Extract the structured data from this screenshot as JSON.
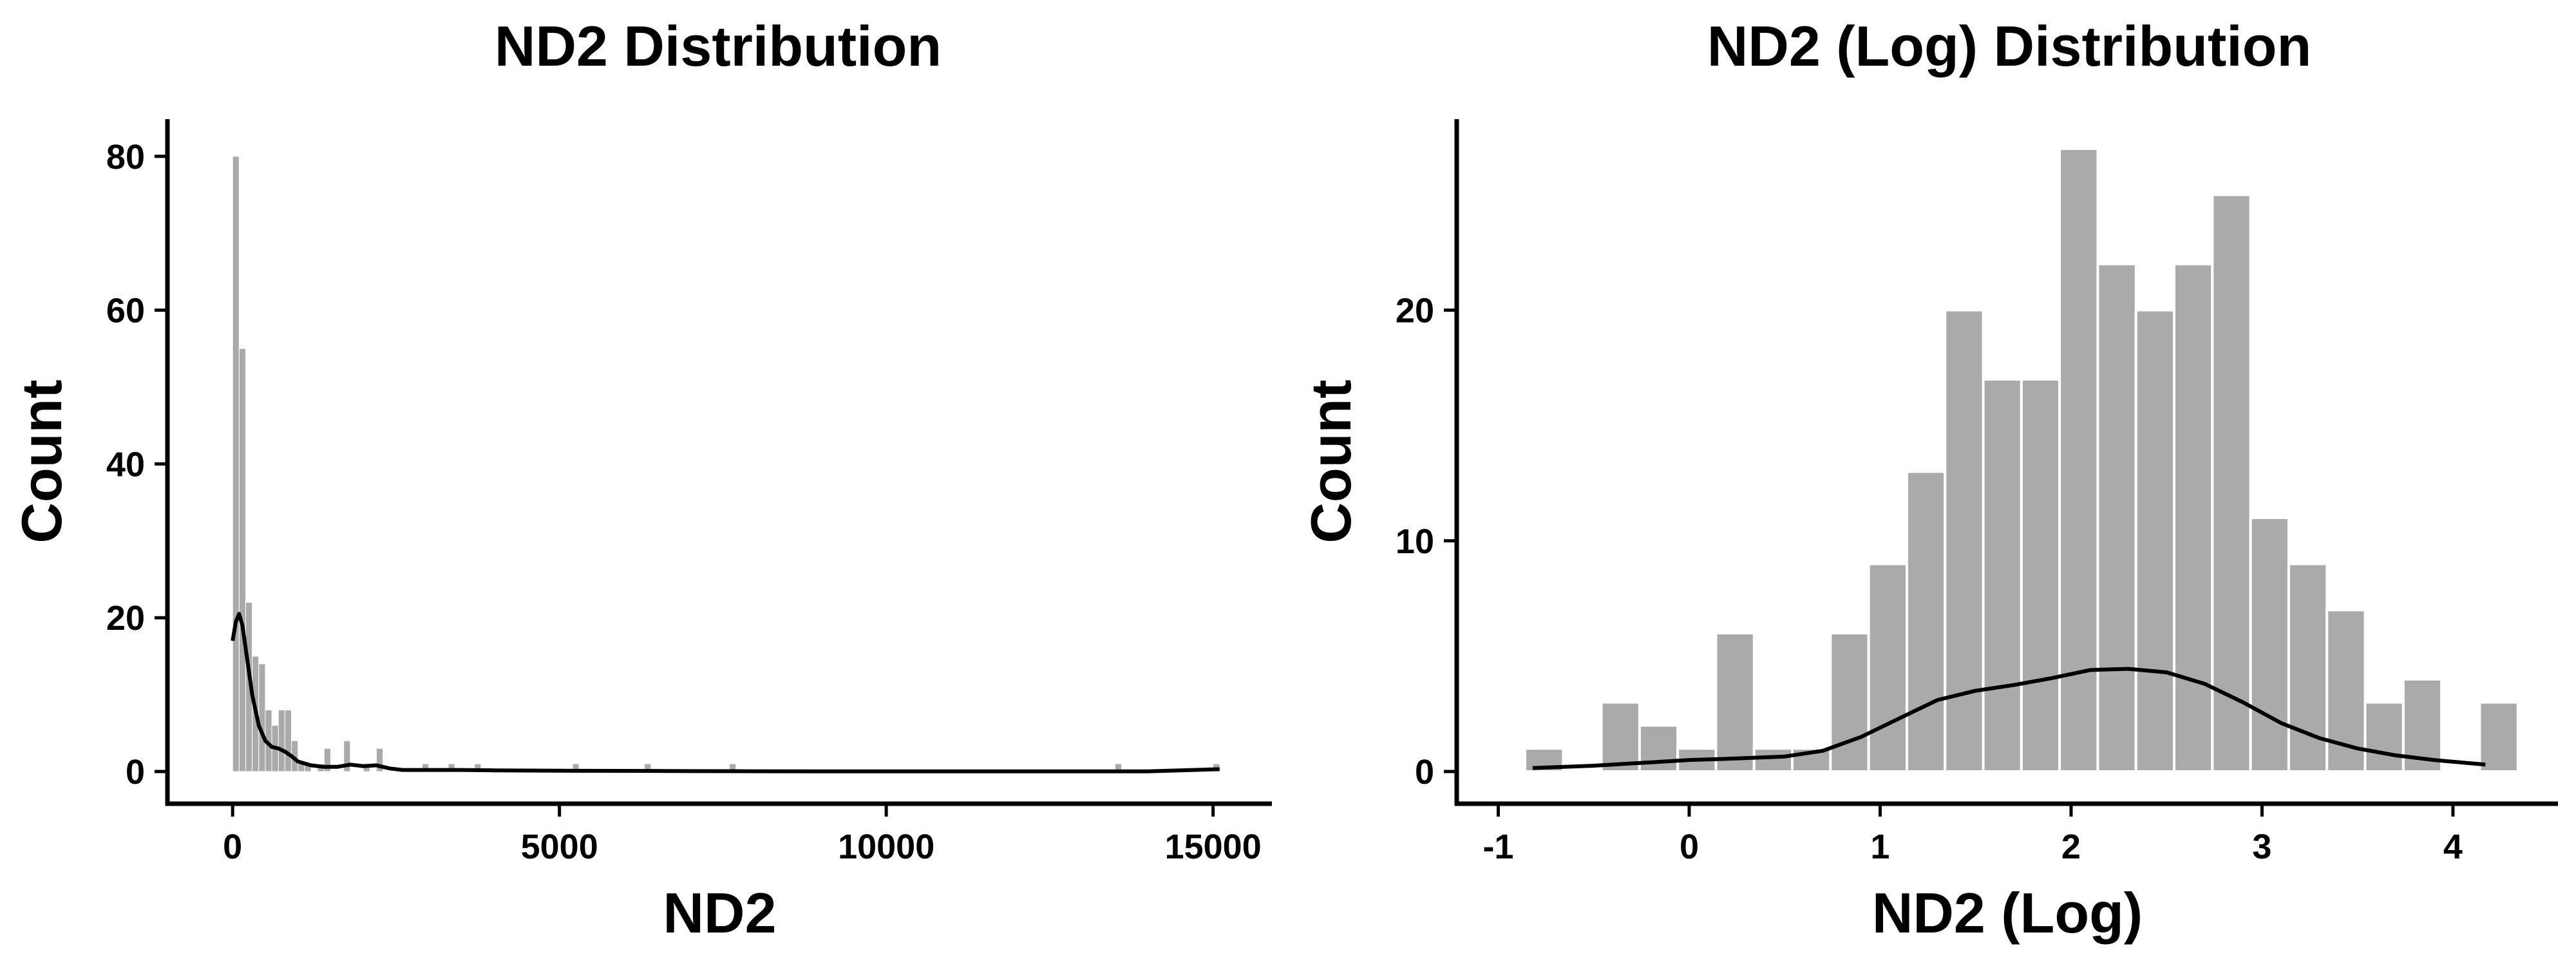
{
  "chart_data": [
    {
      "type": "histogram",
      "title": "ND2 Distribution",
      "xlabel": "ND2",
      "ylabel": "Count",
      "xlim": [
        -800,
        15900
      ],
      "ylim": [
        0,
        84
      ],
      "xticks": [
        0,
        5000,
        10000,
        15000
      ],
      "xtick_labels": [
        "0",
        "5000",
        "10000",
        "15000"
      ],
      "yticks": [
        0,
        20,
        40,
        60,
        80
      ],
      "ytick_labels": [
        "0",
        "20",
        "40",
        "60",
        "80"
      ],
      "bin_width": 100,
      "bins": [
        {
          "x0": 0,
          "x1": 100,
          "count": 80
        },
        {
          "x0": 100,
          "x1": 200,
          "count": 55
        },
        {
          "x0": 200,
          "x1": 300,
          "count": 22
        },
        {
          "x0": 300,
          "x1": 400,
          "count": 15
        },
        {
          "x0": 400,
          "x1": 500,
          "count": 14
        },
        {
          "x0": 500,
          "x1": 600,
          "count": 8
        },
        {
          "x0": 600,
          "x1": 700,
          "count": 6
        },
        {
          "x0": 700,
          "x1": 800,
          "count": 8
        },
        {
          "x0": 800,
          "x1": 900,
          "count": 8
        },
        {
          "x0": 900,
          "x1": 1000,
          "count": 4
        },
        {
          "x0": 1000,
          "x1": 1100,
          "count": 1
        },
        {
          "x0": 1100,
          "x1": 1200,
          "count": 1
        },
        {
          "x0": 1300,
          "x1": 1400,
          "count": 1
        },
        {
          "x0": 1400,
          "x1": 1500,
          "count": 3
        },
        {
          "x0": 1700,
          "x1": 1800,
          "count": 4
        },
        {
          "x0": 2000,
          "x1": 2100,
          "count": 1
        },
        {
          "x0": 2200,
          "x1": 2300,
          "count": 3
        },
        {
          "x0": 2900,
          "x1": 3000,
          "count": 1
        },
        {
          "x0": 3300,
          "x1": 3400,
          "count": 1
        },
        {
          "x0": 3700,
          "x1": 3800,
          "count": 1
        },
        {
          "x0": 5200,
          "x1": 5300,
          "count": 1
        },
        {
          "x0": 6300,
          "x1": 6400,
          "count": 1
        },
        {
          "x0": 7600,
          "x1": 7700,
          "count": 1
        },
        {
          "x0": 13500,
          "x1": 13600,
          "count": 1
        },
        {
          "x0": 15000,
          "x1": 15100,
          "count": 1
        }
      ],
      "kde": {
        "x": [
          0,
          50,
          100,
          150,
          200,
          300,
          400,
          500,
          600,
          700,
          800,
          900,
          1000,
          1200,
          1400,
          1600,
          1800,
          2000,
          2200,
          2400,
          2600,
          3000,
          3500,
          4000,
          5000,
          6000,
          7000,
          8000,
          10000,
          12000,
          14000,
          15100
        ],
        "y": [
          17,
          19.5,
          20.5,
          19,
          16,
          10,
          6,
          4,
          3.2,
          3,
          2.6,
          2,
          1.3,
          0.8,
          0.6,
          0.6,
          0.9,
          0.7,
          0.8,
          0.4,
          0.2,
          0.2,
          0.2,
          0.15,
          0.1,
          0.08,
          0.05,
          0.03,
          0.02,
          0.02,
          0.02,
          0.3
        ]
      }
    },
    {
      "type": "histogram",
      "title": "ND2 (Log) Distribution",
      "xlabel": "ND2 (Log)",
      "ylabel": "Count",
      "xlim": [
        -1.15,
        4.55
      ],
      "ylim": [
        0,
        28
      ],
      "xticks": [
        -1,
        0,
        1,
        2,
        3,
        4
      ],
      "xtick_labels": [
        "-1",
        "0",
        "1",
        "2",
        "3",
        "4"
      ],
      "yticks": [
        0,
        10,
        20
      ],
      "ytick_labels": [
        "0",
        "10",
        "20"
      ],
      "bins": [
        {
          "x0": -0.86,
          "x1": -0.66,
          "count": 1
        },
        {
          "x0": -0.46,
          "x1": -0.26,
          "count": 3
        },
        {
          "x0": -0.26,
          "x1": -0.06,
          "count": 2
        },
        {
          "x0": -0.06,
          "x1": 0.14,
          "count": 1
        },
        {
          "x0": 0.14,
          "x1": 0.34,
          "count": 6
        },
        {
          "x0": 0.34,
          "x1": 0.54,
          "count": 1
        },
        {
          "x0": 0.54,
          "x1": 0.74,
          "count": 1
        },
        {
          "x0": 0.74,
          "x1": 0.94,
          "count": 6
        },
        {
          "x0": 0.94,
          "x1": 1.14,
          "count": 9
        },
        {
          "x0": 1.14,
          "x1": 1.34,
          "count": 13
        },
        {
          "x0": 1.34,
          "x1": 1.54,
          "count": 20
        },
        {
          "x0": 1.54,
          "x1": 1.74,
          "count": 17
        },
        {
          "x0": 1.74,
          "x1": 1.94,
          "count": 17
        },
        {
          "x0": 1.94,
          "x1": 2.14,
          "count": 27
        },
        {
          "x0": 2.14,
          "x1": 2.34,
          "count": 22
        },
        {
          "x0": 2.34,
          "x1": 2.54,
          "count": 20
        },
        {
          "x0": 2.54,
          "x1": 2.74,
          "count": 22
        },
        {
          "x0": 2.74,
          "x1": 2.94,
          "count": 25
        },
        {
          "x0": 2.94,
          "x1": 3.14,
          "count": 11
        },
        {
          "x0": 3.14,
          "x1": 3.34,
          "count": 9
        },
        {
          "x0": 3.34,
          "x1": 3.54,
          "count": 7
        },
        {
          "x0": 3.54,
          "x1": 3.74,
          "count": 3
        },
        {
          "x0": 3.74,
          "x1": 3.94,
          "count": 4
        },
        {
          "x0": 4.14,
          "x1": 4.34,
          "count": 3
        }
      ],
      "kde": {
        "x": [
          -0.82,
          -0.5,
          -0.2,
          0,
          0.2,
          0.5,
          0.7,
          0.9,
          1.1,
          1.3,
          1.5,
          1.7,
          1.9,
          2.1,
          2.3,
          2.5,
          2.7,
          2.9,
          3.1,
          3.3,
          3.5,
          3.7,
          3.9,
          4.17
        ],
        "y": [
          0.15,
          0.25,
          0.4,
          0.5,
          0.55,
          0.65,
          0.9,
          1.5,
          2.3,
          3.1,
          3.5,
          3.75,
          4.05,
          4.4,
          4.45,
          4.3,
          3.8,
          3.0,
          2.1,
          1.45,
          1.0,
          0.7,
          0.5,
          0.3
        ]
      }
    }
  ]
}
